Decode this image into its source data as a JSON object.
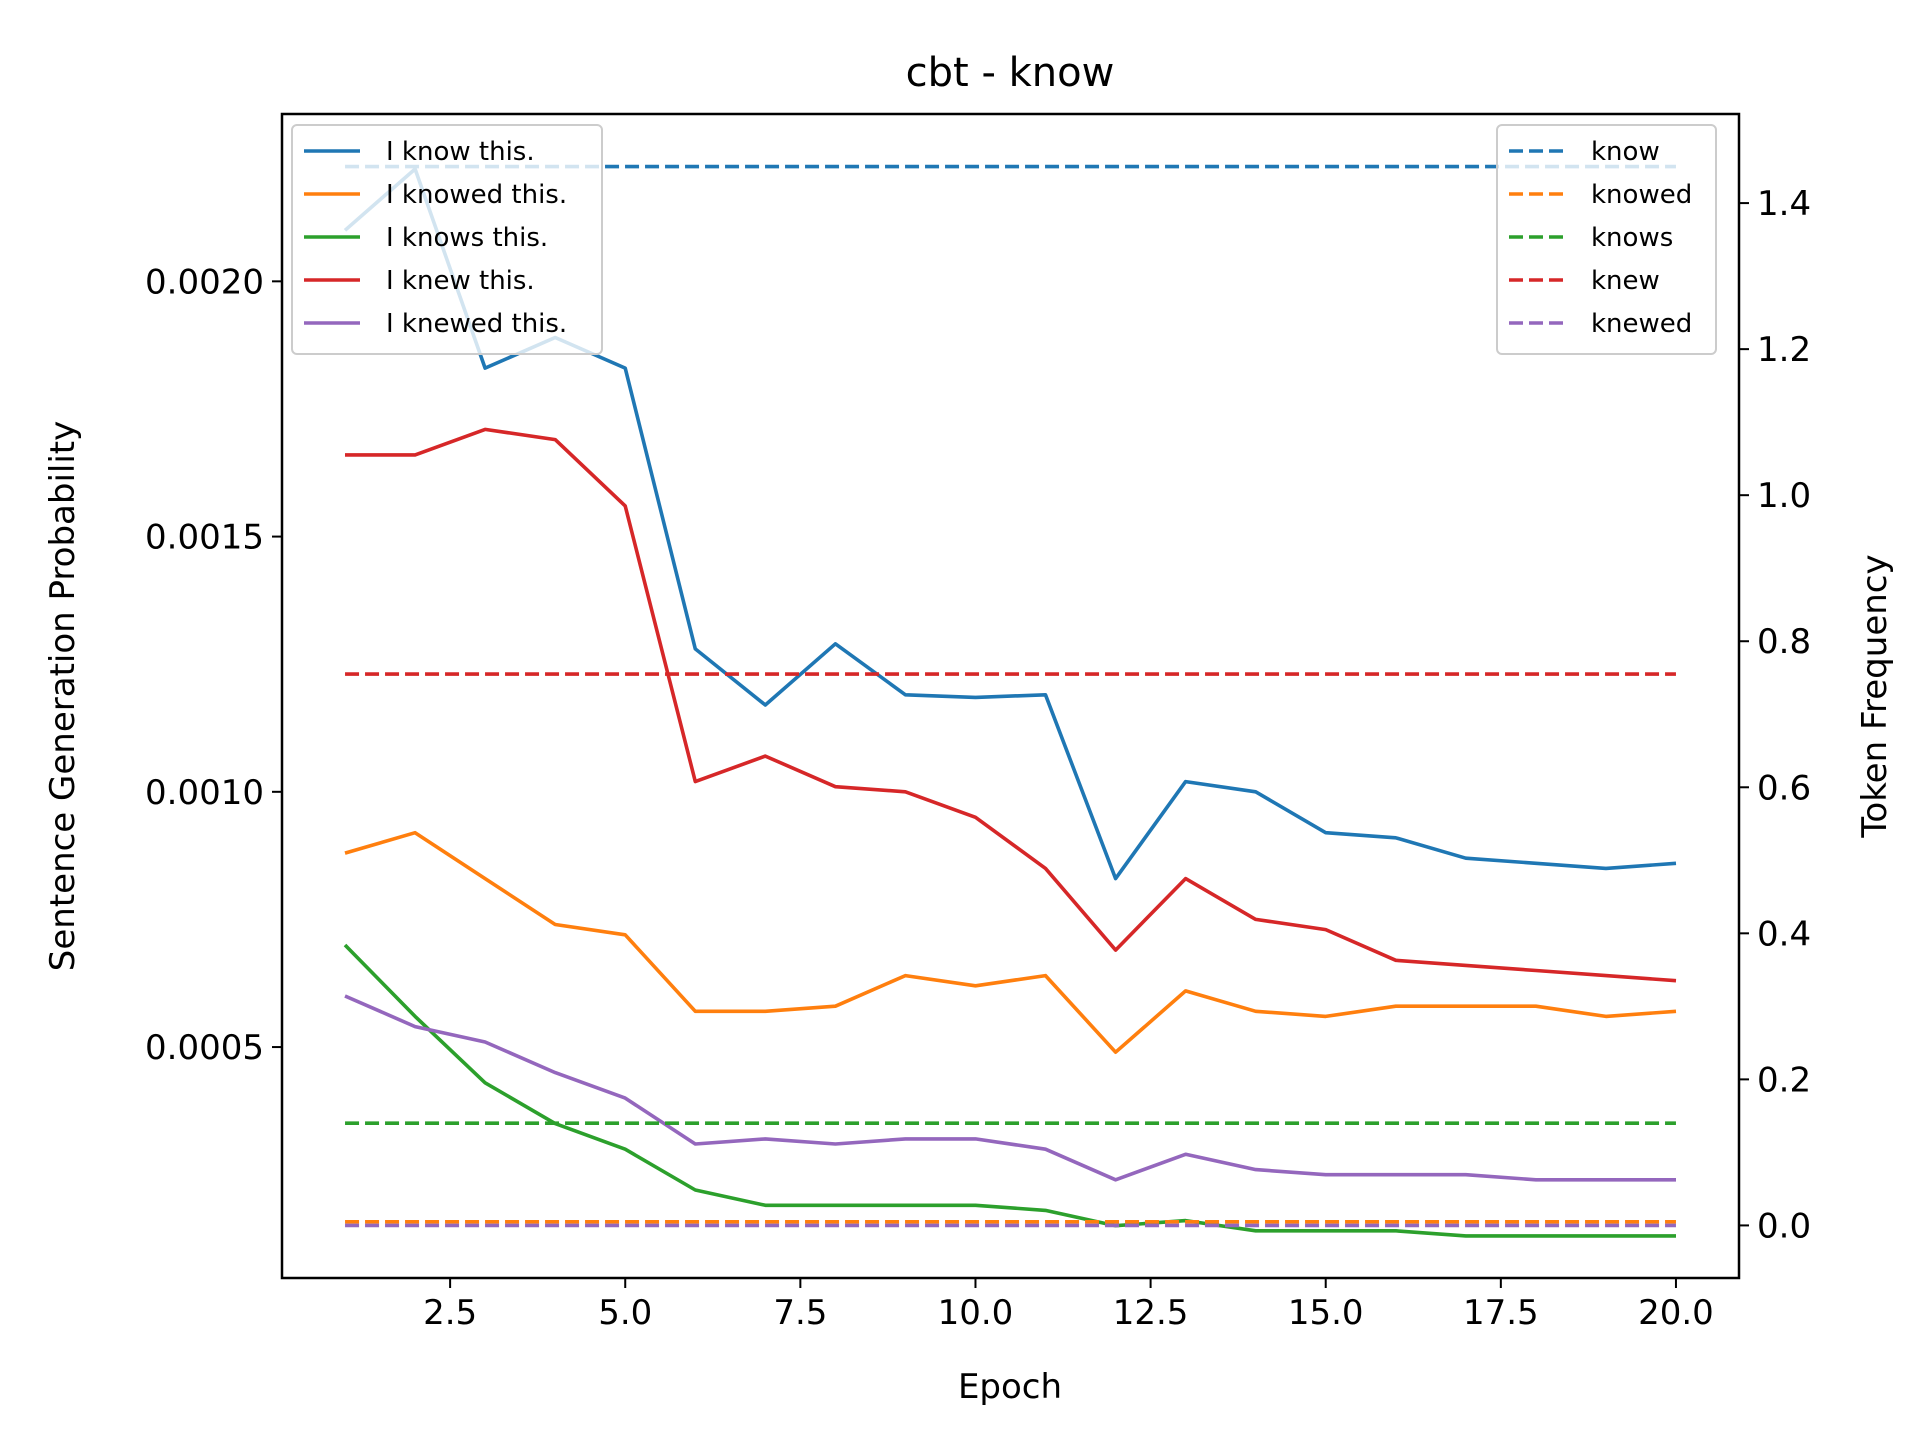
{
  "chart_data": {
    "type": "line",
    "title": "cbt - know",
    "xlabel": "Epoch",
    "ylabel": "Sentence Generation Probability",
    "y2label": "Token Frequency",
    "xlim": [
      0.1,
      20.9
    ],
    "ylim": [
      4.76e-05,
      0.0023278
    ],
    "y2lim": [
      -0.072,
      1.522
    ],
    "x_ticks": [
      2.5,
      5.0,
      7.5,
      10.0,
      12.5,
      15.0,
      17.5,
      20.0
    ],
    "x_tick_labels": [
      "2.5",
      "5.0",
      "7.5",
      "10.0",
      "12.5",
      "15.0",
      "17.5",
      "20.0"
    ],
    "y_ticks": [
      0.0005,
      0.001,
      0.0015,
      0.002
    ],
    "y_tick_labels": [
      "0.0005",
      "0.0010",
      "0.0015",
      "0.0020"
    ],
    "y2_ticks": [
      0.0,
      0.2,
      0.4,
      0.6,
      0.8,
      1.0,
      1.2,
      1.4
    ],
    "y2_tick_labels": [
      "0.0",
      "0.2",
      "0.4",
      "0.6",
      "0.8",
      "1.0",
      "1.2",
      "1.4"
    ],
    "grid": false,
    "legend_left_placement": "upper-left",
    "legend_right_placement": "upper-right",
    "x": [
      1,
      2,
      3,
      4,
      5,
      6,
      7,
      8,
      9,
      10,
      11,
      12,
      13,
      14,
      15,
      16,
      17,
      18,
      19,
      20
    ],
    "series": [
      {
        "name": "I know this.",
        "axis": "left",
        "color": "#1f77b4",
        "style": "solid",
        "values": [
          0.0021,
          0.00222,
          0.00183,
          0.00189,
          0.00183,
          0.00128,
          0.00117,
          0.00129,
          0.00119,
          0.001185,
          0.00119,
          0.00083,
          0.00102,
          0.001,
          0.00092,
          0.00091,
          0.00087,
          0.00086,
          0.00085,
          0.00086
        ]
      },
      {
        "name": "I knowed this.",
        "axis": "left",
        "color": "#ff7f0e",
        "style": "solid",
        "values": [
          0.00088,
          0.00092,
          0.00083,
          0.00074,
          0.00072,
          0.00057,
          0.00057,
          0.00058,
          0.00064,
          0.00062,
          0.00064,
          0.00049,
          0.00061,
          0.00057,
          0.00056,
          0.00058,
          0.00058,
          0.00058,
          0.00056,
          0.00057
        ]
      },
      {
        "name": "I knows this.",
        "axis": "left",
        "color": "#2ca02c",
        "style": "solid",
        "values": [
          0.0007,
          0.00056,
          0.00043,
          0.00035,
          0.0003,
          0.00022,
          0.00019,
          0.00019,
          0.00019,
          0.00019,
          0.00018,
          0.00015,
          0.00016,
          0.00014,
          0.00014,
          0.00014,
          0.00013,
          0.00013,
          0.00013,
          0.00013
        ]
      },
      {
        "name": "I knew this.",
        "axis": "left",
        "color": "#d62728",
        "style": "solid",
        "values": [
          0.00166,
          0.00166,
          0.00171,
          0.00169,
          0.00156,
          0.00102,
          0.00107,
          0.00101,
          0.001,
          0.00095,
          0.00085,
          0.00069,
          0.00083,
          0.00075,
          0.00073,
          0.00067,
          0.00066,
          0.00065,
          0.00064,
          0.00063
        ]
      },
      {
        "name": "I knewed this.",
        "axis": "left",
        "color": "#9467bd",
        "style": "solid",
        "values": [
          0.0006,
          0.00054,
          0.00051,
          0.00045,
          0.0004,
          0.00031,
          0.00032,
          0.00031,
          0.00032,
          0.00032,
          0.0003,
          0.00024,
          0.00029,
          0.00026,
          0.00025,
          0.00025,
          0.00025,
          0.00024,
          0.00024,
          0.00024
        ]
      },
      {
        "name": "know",
        "axis": "right",
        "color": "#1f77b4",
        "style": "dashed",
        "value": 1.45
      },
      {
        "name": "knowed",
        "axis": "right",
        "color": "#ff7f0e",
        "style": "dashed",
        "value": 0.005
      },
      {
        "name": "knows",
        "axis": "right",
        "color": "#2ca02c",
        "style": "dashed",
        "value": 0.14
      },
      {
        "name": "knew",
        "axis": "right",
        "color": "#d62728",
        "style": "dashed",
        "value": 0.755
      },
      {
        "name": "knewed",
        "axis": "right",
        "color": "#9467bd",
        "style": "dashed",
        "value": 0.0
      }
    ]
  }
}
